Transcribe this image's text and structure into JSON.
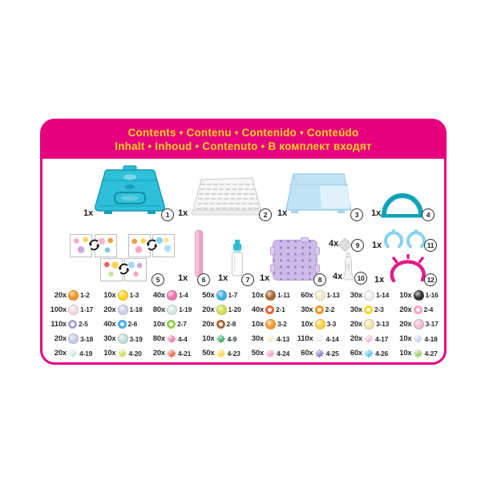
{
  "header": {
    "line1": "Contents • Contenu • Contenido • Conteúdo",
    "line2": "Inhalt • Inhoud • Contenuto • В комплект входят"
  },
  "colors": {
    "accent": "#E6007E",
    "headline": "#FFD21E",
    "case_teal": "#2EC0D8",
    "lid_blue": "#C2E3F5",
    "arch_teal": "#0FA2B6",
    "pen_pink": "#F0AECB",
    "sprayer_teal": "#2EBCD2",
    "pegboard_purple": "#CDBBE7",
    "rings_blue": "#85D3F2",
    "ring_pink": "#DE1E88"
  },
  "items": [
    {
      "num": "1",
      "qty": "1x"
    },
    {
      "num": "2",
      "qty": "1x"
    },
    {
      "num": "3",
      "qty": "1x"
    },
    {
      "num": "4",
      "qty": "1x"
    },
    {
      "num": "5",
      "qty": ""
    },
    {
      "num": "6",
      "qty": "1x"
    },
    {
      "num": "7",
      "qty": "1x"
    },
    {
      "num": "8",
      "qty": "1x"
    },
    {
      "num": "9",
      "qty": "4x"
    },
    {
      "num": "10",
      "qty": "4x"
    },
    {
      "num": "11",
      "qty": "1x"
    },
    {
      "num": "12",
      "qty": "1x"
    }
  ],
  "beads": {
    "rows": [
      [
        {
          "count": "20x",
          "code": "1-2",
          "color": "#F7941D",
          "shape": "round"
        },
        {
          "count": "10x",
          "code": "1-3",
          "color": "#FFD41E",
          "shape": "round"
        },
        {
          "count": "40x",
          "code": "1-4",
          "color": "#F175AC",
          "shape": "round"
        },
        {
          "count": "50x",
          "code": "1-7",
          "color": "#3BB3E6",
          "shape": "round"
        },
        {
          "count": "10x",
          "code": "1-11",
          "color": "#A96A35",
          "shape": "round"
        },
        {
          "count": "60x",
          "code": "1-13",
          "color": "#F3ECC8",
          "shape": "round"
        },
        {
          "count": "30x",
          "code": "1-14",
          "color": "#EFEFEF",
          "shape": "round"
        },
        {
          "count": "10x",
          "code": "1-16",
          "color": "#333333",
          "shape": "round"
        }
      ],
      [
        {
          "count": "100x",
          "code": "1-17",
          "color": "#F6D9E4",
          "shape": "round"
        },
        {
          "count": "20x",
          "code": "1-18",
          "color": "#CBD0EC",
          "shape": "round"
        },
        {
          "count": "80x",
          "code": "1-19",
          "color": "#D8EAE6",
          "shape": "round"
        },
        {
          "count": "20x",
          "code": "1-20",
          "color": "#D3DC52",
          "shape": "round"
        },
        {
          "count": "40x",
          "code": "2-1",
          "color": "#F0603A",
          "shape": "jewel"
        },
        {
          "count": "30x",
          "code": "2-2",
          "color": "#F79421",
          "shape": "jewel"
        },
        {
          "count": "30x",
          "code": "2-3",
          "color": "#FFD42E",
          "shape": "jewel"
        },
        {
          "count": "20x",
          "code": "2-4",
          "color": "#F4A6C6",
          "shape": "jewel"
        }
      ],
      [
        {
          "count": "110x",
          "code": "2-5",
          "color": "#A9A5D2",
          "shape": "jewel"
        },
        {
          "count": "40x",
          "code": "2-6",
          "color": "#45AEE8",
          "shape": "jewel"
        },
        {
          "count": "10x",
          "code": "2-7",
          "color": "#97CC4F",
          "shape": "jewel"
        },
        {
          "count": "20x",
          "code": "2-8",
          "color": "#AA6A33",
          "shape": "jewel"
        },
        {
          "count": "10x",
          "code": "3-2",
          "color": "#F79B2E",
          "shape": "round"
        },
        {
          "count": "10x",
          "code": "3-3",
          "color": "#FFD43C",
          "shape": "round"
        },
        {
          "count": "20x",
          "code": "3-13",
          "color": "#EFE5AE",
          "shape": "round"
        },
        {
          "count": "20x",
          "code": "3-17",
          "color": "#F4BCD2",
          "shape": "round"
        }
      ],
      [
        {
          "count": "20x",
          "code": "3-18",
          "color": "#C6CCEA",
          "shape": "round"
        },
        {
          "count": "30x",
          "code": "3-19",
          "color": "#C2E0DB",
          "shape": "round"
        },
        {
          "count": "80x",
          "code": "4-4",
          "color": "#F175AC",
          "shape": "star"
        },
        {
          "count": "10x",
          "code": "4-9",
          "color": "#2FA457",
          "shape": "star"
        },
        {
          "count": "30x",
          "code": "4-13",
          "color": "#F2ECC6",
          "shape": "star"
        },
        {
          "count": "110x",
          "code": "4-14",
          "color": "#F0F0F0",
          "shape": "star"
        },
        {
          "count": "20x",
          "code": "4-17",
          "color": "#F3BBD6",
          "shape": "star"
        },
        {
          "count": "10x",
          "code": "4-18",
          "color": "#C6CDEB",
          "shape": "star"
        }
      ],
      [
        {
          "count": "20x",
          "code": "4-19",
          "color": "#CBE3DF",
          "shape": "star"
        },
        {
          "count": "10x",
          "code": "4-20",
          "color": "#CCD844",
          "shape": "star"
        },
        {
          "count": "20x",
          "code": "4-21",
          "color": "#F0603A",
          "shape": "star"
        },
        {
          "count": "50x",
          "code": "4-23",
          "color": "#FFD43C",
          "shape": "star"
        },
        {
          "count": "50x",
          "code": "4-24",
          "color": "#F49FC5",
          "shape": "star"
        },
        {
          "count": "60x",
          "code": "4-25",
          "color": "#8273C2",
          "shape": "star"
        },
        {
          "count": "60x",
          "code": "4-26",
          "color": "#55C2F0",
          "shape": "star"
        },
        {
          "count": "10x",
          "code": "4-27",
          "color": "#8FCB56",
          "shape": "star"
        }
      ]
    ]
  }
}
